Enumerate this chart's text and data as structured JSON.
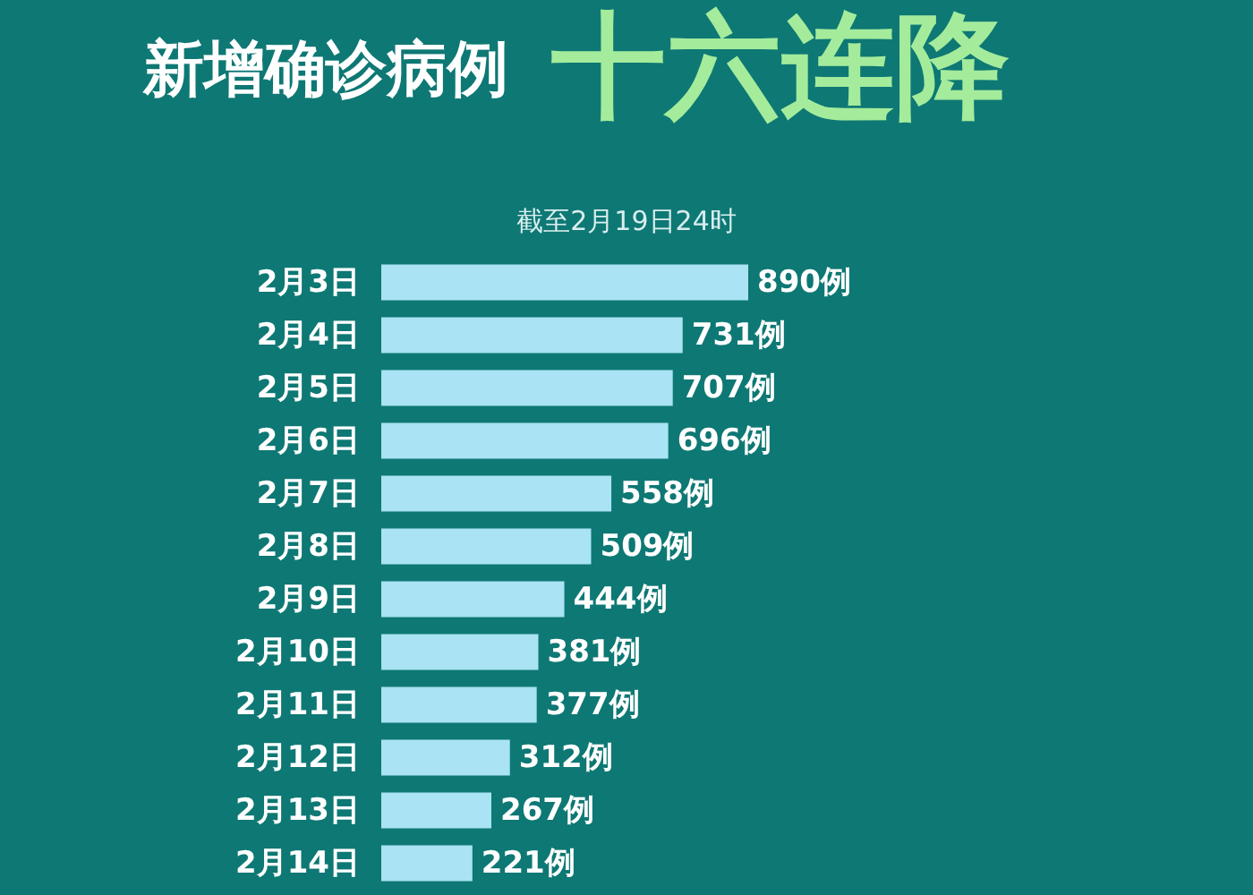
{
  "chart_data": {
    "type": "bar",
    "orientation": "horizontal",
    "title": "新增确诊病例",
    "subtitle": "截至2月19日24时",
    "annotations": [
      "十六连降"
    ],
    "categories": [
      "2月3日",
      "2月4日",
      "2月5日",
      "2月6日",
      "2月7日",
      "2月8日",
      "2月9日",
      "2月10日",
      "2月11日",
      "2月12日",
      "2月13日",
      "2月14日"
    ],
    "values": [
      890,
      731,
      707,
      696,
      558,
      509,
      444,
      381,
      377,
      312,
      267,
      221
    ],
    "value_labels": [
      "890例",
      "731例",
      "707例",
      "696例",
      "558例",
      "509例",
      "444例",
      "381例",
      "377例",
      "312例",
      "267例",
      "221例"
    ],
    "color": "#a9e3f4",
    "tick_labels": "y"
  }
}
